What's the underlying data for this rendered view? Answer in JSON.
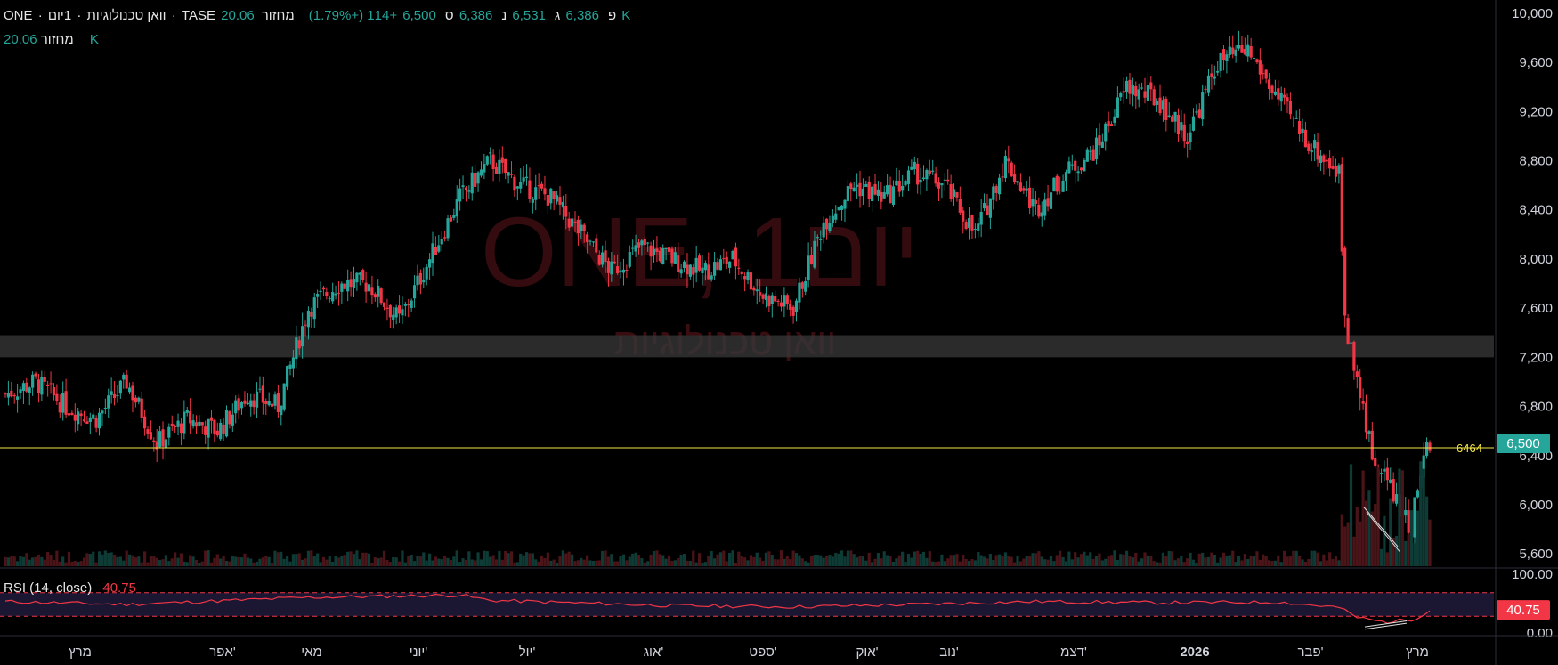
{
  "header": {
    "symbol": "ONE",
    "title": "וואן טכנולוגיות",
    "interval": "1יום",
    "exchange": "TASE",
    "open_label": "פ",
    "open": "6,386",
    "high_label": "ג",
    "high": "6,531",
    "low_label": "נ",
    "low": "6,386",
    "close_label": "ס",
    "close": "6,500",
    "change": "+114 (+1.79%)",
    "volume_label": "מחזור",
    "volume": "20.06 K"
  },
  "volume_legend": {
    "label": "מחזור",
    "value": "20.06 K"
  },
  "rsi_legend": {
    "label": "RSI (14, close)",
    "value": "40.75"
  },
  "watermark": {
    "main": "ONE, 1יום",
    "sub": "וואן טכנולוגיות"
  },
  "price_axis": {
    "ticks": [
      "10,000",
      "9,600",
      "9,200",
      "8,800",
      "8,400",
      "8,000",
      "7,600",
      "7,200",
      "6,800",
      "6,400",
      "6,000",
      "5,600"
    ],
    "last_price_badge": "6,500",
    "alert_line_label": "6464"
  },
  "rsi_axis": {
    "ticks": [
      "100.00",
      "0.00"
    ],
    "badge": "40.75"
  },
  "time_axis": {
    "labels": [
      "מרץ",
      "אפר'",
      "מאי",
      "יוני'",
      "יול'",
      "אוג'",
      "ספט'",
      "אוק'",
      "נוב'",
      "דצמ'",
      "2026",
      "פבר'",
      "מרץ"
    ]
  },
  "colors": {
    "up": "#26a69a",
    "down": "#f23645",
    "alert_line": "#f5e642",
    "zone": "#3a3a3a"
  },
  "chart_data": {
    "type": "candlestick",
    "y_range": [
      5500,
      10050
    ],
    "rsi_range": [
      0,
      100
    ],
    "rsi_bands": [
      30,
      70
    ],
    "highlight_zone": [
      7200,
      7380
    ],
    "alert_line": 6464,
    "last_close": 6500,
    "anchors": [
      [
        0,
        6900
      ],
      [
        10,
        7000
      ],
      [
        20,
        6800
      ],
      [
        30,
        6700
      ],
      [
        40,
        7000
      ],
      [
        50,
        6500
      ],
      [
        60,
        6700
      ],
      [
        70,
        6600
      ],
      [
        80,
        6900
      ],
      [
        90,
        6800
      ],
      [
        100,
        7600
      ],
      [
        110,
        7800
      ],
      [
        120,
        7800
      ],
      [
        130,
        7500
      ],
      [
        140,
        8000
      ],
      [
        150,
        8500
      ],
      [
        160,
        8800
      ],
      [
        170,
        8600
      ],
      [
        180,
        8500
      ],
      [
        190,
        8200
      ],
      [
        200,
        7900
      ],
      [
        210,
        8100
      ],
      [
        220,
        8000
      ],
      [
        230,
        7900
      ],
      [
        240,
        8000
      ],
      [
        250,
        7700
      ],
      [
        260,
        7600
      ],
      [
        270,
        8300
      ],
      [
        280,
        8600
      ],
      [
        290,
        8500
      ],
      [
        300,
        8700
      ],
      [
        310,
        8600
      ],
      [
        320,
        8200
      ],
      [
        330,
        8800
      ],
      [
        340,
        8400
      ],
      [
        350,
        8700
      ],
      [
        360,
        8900
      ],
      [
        370,
        9400
      ],
      [
        380,
        9300
      ],
      [
        390,
        9000
      ],
      [
        400,
        9600
      ],
      [
        410,
        9700
      ],
      [
        420,
        9300
      ],
      [
        430,
        8950
      ],
      [
        440,
        8700
      ],
      [
        442,
        7500
      ],
      [
        446,
        7000
      ],
      [
        452,
        6300
      ],
      [
        456,
        6200
      ],
      [
        460,
        6000
      ],
      [
        464,
        5800
      ],
      [
        466,
        6200
      ],
      [
        470,
        6500
      ]
    ],
    "rsi_series": [
      [
        0,
        55
      ],
      [
        40,
        50
      ],
      [
        100,
        62
      ],
      [
        150,
        66
      ],
      [
        160,
        57
      ],
      [
        220,
        48
      ],
      [
        260,
        46
      ],
      [
        300,
        50
      ],
      [
        340,
        55
      ],
      [
        380,
        53
      ],
      [
        420,
        54
      ],
      [
        440,
        45
      ],
      [
        446,
        28
      ],
      [
        455,
        20
      ],
      [
        465,
        25
      ],
      [
        470,
        40.75
      ]
    ]
  }
}
